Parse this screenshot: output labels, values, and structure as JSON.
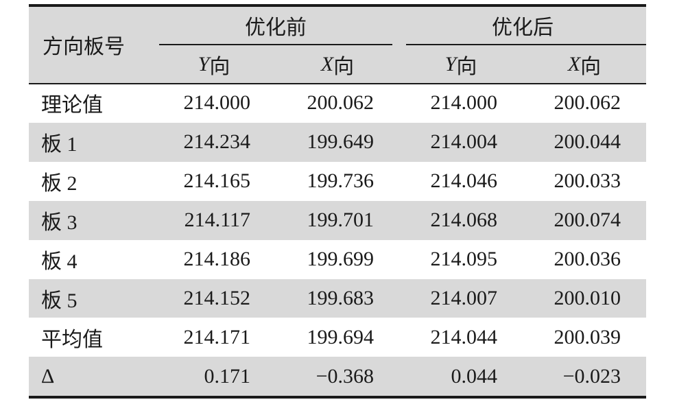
{
  "table": {
    "header": {
      "corner": "方向板号",
      "groups": [
        "优化前",
        "优化后"
      ],
      "subheaders": [
        [
          "Y",
          "向"
        ],
        [
          "X",
          "向"
        ],
        [
          "Y",
          "向"
        ],
        [
          "X",
          "向"
        ]
      ]
    },
    "rows": [
      [
        "理论值",
        "214.000",
        "200.062",
        "214.000",
        "200.062"
      ],
      [
        "板 1",
        "214.234",
        "199.649",
        "214.004",
        "200.044"
      ],
      [
        "板 2",
        "214.165",
        "199.736",
        "214.046",
        "200.033"
      ],
      [
        "板 3",
        "214.117",
        "199.701",
        "214.068",
        "200.074"
      ],
      [
        "板 4",
        "214.186",
        "199.699",
        "214.095",
        "200.036"
      ],
      [
        "板 5",
        "214.152",
        "199.683",
        "214.007",
        "200.010"
      ],
      [
        "平均值",
        "214.171",
        "199.694",
        "214.044",
        "200.039"
      ],
      [
        "Δ",
        "0.171",
        "−0.368",
        "0.044",
        "−0.023"
      ]
    ]
  }
}
